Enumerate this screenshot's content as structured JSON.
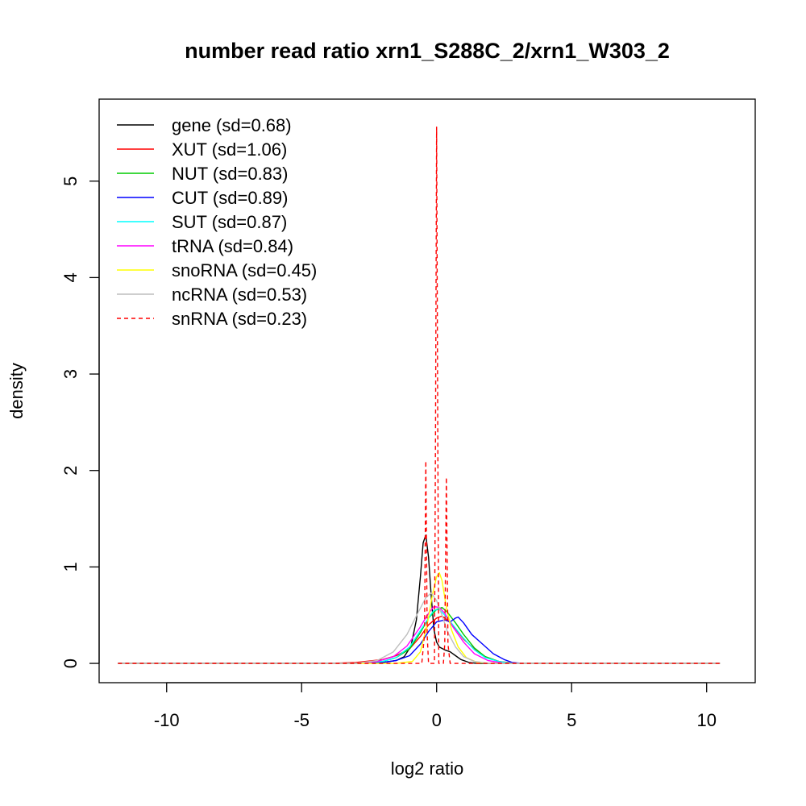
{
  "chart_data": {
    "type": "line",
    "title": "number read ratio xrn1_S288C_2/xrn1_W303_2",
    "xlabel": "log2 ratio",
    "ylabel": "density",
    "xlim": [
      -12.5,
      11.8
    ],
    "ylim": [
      -0.2,
      5.85
    ],
    "x_ticks": [
      -10,
      -5,
      0,
      5,
      10
    ],
    "x_tick_labels": [
      "-10",
      "-5",
      "0",
      "5",
      "10"
    ],
    "y_ticks": [
      0,
      1,
      2,
      3,
      4,
      5
    ],
    "y_tick_labels": [
      "0",
      "1",
      "2",
      "3",
      "4",
      "5"
    ],
    "grid": false,
    "legend_position": "top-left",
    "series": [
      {
        "name": "gene (sd=0.68)",
        "color": "#000000",
        "dash": "solid",
        "points": [
          [
            -11.8,
            0
          ],
          [
            -3,
            0
          ],
          [
            -2,
            0.01
          ],
          [
            -1.5,
            0.03
          ],
          [
            -1.2,
            0.07
          ],
          [
            -0.95,
            0.18
          ],
          [
            -0.75,
            0.45
          ],
          [
            -0.6,
            0.9
          ],
          [
            -0.5,
            1.25
          ],
          [
            -0.4,
            1.33
          ],
          [
            -0.3,
            1.1
          ],
          [
            -0.2,
            0.7
          ],
          [
            -0.1,
            0.35
          ],
          [
            0.0,
            0.22
          ],
          [
            0.1,
            0.17
          ],
          [
            0.3,
            0.14
          ],
          [
            0.5,
            0.12
          ],
          [
            0.7,
            0.08
          ],
          [
            0.9,
            0.04
          ],
          [
            1.2,
            0.01
          ],
          [
            1.5,
            0
          ],
          [
            10.5,
            0
          ]
        ]
      },
      {
        "name": "XUT (sd=1.06)",
        "color": "#ff0000",
        "dash": "solid",
        "points": [
          [
            -11.8,
            0
          ],
          [
            -4,
            0
          ],
          [
            -3,
            0.01
          ],
          [
            -2,
            0.04
          ],
          [
            -1.5,
            0.08
          ],
          [
            -1.0,
            0.15
          ],
          [
            -0.6,
            0.28
          ],
          [
            -0.3,
            0.4
          ],
          [
            0,
            0.47
          ],
          [
            0.2,
            0.49
          ],
          [
            0.4,
            0.45
          ],
          [
            0.7,
            0.36
          ],
          [
            1.0,
            0.25
          ],
          [
            1.4,
            0.15
          ],
          [
            1.8,
            0.07
          ],
          [
            2.3,
            0.02
          ],
          [
            3,
            0
          ],
          [
            10.5,
            0
          ]
        ]
      },
      {
        "name": "NUT (sd=0.83)",
        "color": "#00cc00",
        "dash": "solid",
        "points": [
          [
            -11.8,
            0
          ],
          [
            -3,
            0
          ],
          [
            -2,
            0.02
          ],
          [
            -1.5,
            0.06
          ],
          [
            -1.0,
            0.15
          ],
          [
            -0.6,
            0.32
          ],
          [
            -0.3,
            0.47
          ],
          [
            0,
            0.56
          ],
          [
            0.2,
            0.58
          ],
          [
            0.4,
            0.53
          ],
          [
            0.7,
            0.42
          ],
          [
            1.0,
            0.3
          ],
          [
            1.4,
            0.16
          ],
          [
            1.8,
            0.07
          ],
          [
            2.3,
            0.02
          ],
          [
            2.8,
            0
          ],
          [
            10.5,
            0
          ]
        ]
      },
      {
        "name": "CUT (sd=0.89)",
        "color": "#0000ff",
        "dash": "solid",
        "points": [
          [
            -11.8,
            0
          ],
          [
            -3,
            0
          ],
          [
            -2,
            0.01
          ],
          [
            -1.5,
            0.03
          ],
          [
            -1.0,
            0.08
          ],
          [
            -0.6,
            0.2
          ],
          [
            -0.3,
            0.33
          ],
          [
            0,
            0.43
          ],
          [
            0.3,
            0.45
          ],
          [
            0.5,
            0.43
          ],
          [
            0.7,
            0.47
          ],
          [
            0.8,
            0.48
          ],
          [
            1.0,
            0.42
          ],
          [
            1.3,
            0.3
          ],
          [
            1.7,
            0.2
          ],
          [
            2.1,
            0.1
          ],
          [
            2.5,
            0.04
          ],
          [
            2.8,
            0.01
          ],
          [
            3.2,
            0
          ],
          [
            10.5,
            0
          ]
        ]
      },
      {
        "name": "SUT (sd=0.87)",
        "color": "#00ffff",
        "dash": "solid",
        "points": [
          [
            -11.8,
            0
          ],
          [
            -3,
            0
          ],
          [
            -2,
            0.02
          ],
          [
            -1.5,
            0.06
          ],
          [
            -1.0,
            0.17
          ],
          [
            -0.6,
            0.34
          ],
          [
            -0.3,
            0.47
          ],
          [
            -0.1,
            0.55
          ],
          [
            0.1,
            0.56
          ],
          [
            0.3,
            0.5
          ],
          [
            0.6,
            0.4
          ],
          [
            1.0,
            0.26
          ],
          [
            1.4,
            0.14
          ],
          [
            1.8,
            0.06
          ],
          [
            2.3,
            0.02
          ],
          [
            2.8,
            0
          ],
          [
            10.5,
            0
          ]
        ]
      },
      {
        "name": "tRNA (sd=0.84)",
        "color": "#ff00ff",
        "dash": "solid",
        "points": [
          [
            -11.8,
            0
          ],
          [
            -3,
            0
          ],
          [
            -2.2,
            0.02
          ],
          [
            -1.6,
            0.07
          ],
          [
            -1.1,
            0.18
          ],
          [
            -0.6,
            0.38
          ],
          [
            -0.3,
            0.52
          ],
          [
            -0.1,
            0.59
          ],
          [
            0.1,
            0.58
          ],
          [
            0.3,
            0.52
          ],
          [
            0.6,
            0.38
          ],
          [
            1.0,
            0.22
          ],
          [
            1.4,
            0.1
          ],
          [
            1.9,
            0.03
          ],
          [
            2.5,
            0
          ],
          [
            10.5,
            0
          ]
        ]
      },
      {
        "name": "snoRNA (sd=0.45)",
        "color": "#ffff00",
        "dash": "solid",
        "points": [
          [
            -11.8,
            0
          ],
          [
            -1.5,
            0
          ],
          [
            -0.9,
            0.02
          ],
          [
            -0.6,
            0.12
          ],
          [
            -0.35,
            0.4
          ],
          [
            -0.15,
            0.72
          ],
          [
            0.0,
            0.9
          ],
          [
            0.1,
            0.94
          ],
          [
            0.2,
            0.86
          ],
          [
            0.35,
            0.6
          ],
          [
            0.55,
            0.35
          ],
          [
            0.8,
            0.17
          ],
          [
            1.1,
            0.06
          ],
          [
            1.5,
            0.01
          ],
          [
            2,
            0
          ],
          [
            10.5,
            0
          ]
        ]
      },
      {
        "name": "ncRNA (sd=0.53)",
        "color": "#bebebe",
        "dash": "solid",
        "points": [
          [
            -11.8,
            0
          ],
          [
            -3,
            0
          ],
          [
            -2.2,
            0.03
          ],
          [
            -1.6,
            0.12
          ],
          [
            -1.1,
            0.3
          ],
          [
            -0.7,
            0.52
          ],
          [
            -0.4,
            0.68
          ],
          [
            -0.2,
            0.73
          ],
          [
            0,
            0.65
          ],
          [
            0.2,
            0.5
          ],
          [
            0.4,
            0.33
          ],
          [
            0.7,
            0.17
          ],
          [
            1.0,
            0.07
          ],
          [
            1.4,
            0.02
          ],
          [
            2,
            0
          ],
          [
            10.5,
            0
          ]
        ]
      },
      {
        "name": "snRNA (sd=0.23)",
        "color": "#ff0000",
        "dash": "dashed",
        "points": [
          [
            -11.8,
            0
          ],
          [
            -0.55,
            0
          ],
          [
            -0.45,
            0.3
          ],
          [
            -0.4,
            2.1
          ],
          [
            -0.35,
            0.3
          ],
          [
            -0.3,
            0
          ],
          [
            -0.2,
            0
          ],
          [
            -0.08,
            0
          ],
          [
            -0.04,
            2.5
          ],
          [
            0.0,
            5.56
          ],
          [
            0.04,
            2.5
          ],
          [
            0.08,
            0
          ],
          [
            0.15,
            0
          ],
          [
            0.25,
            0
          ],
          [
            0.3,
            0.2
          ],
          [
            0.36,
            1.93
          ],
          [
            0.42,
            0.2
          ],
          [
            0.5,
            0
          ],
          [
            10.5,
            0
          ]
        ]
      }
    ]
  }
}
